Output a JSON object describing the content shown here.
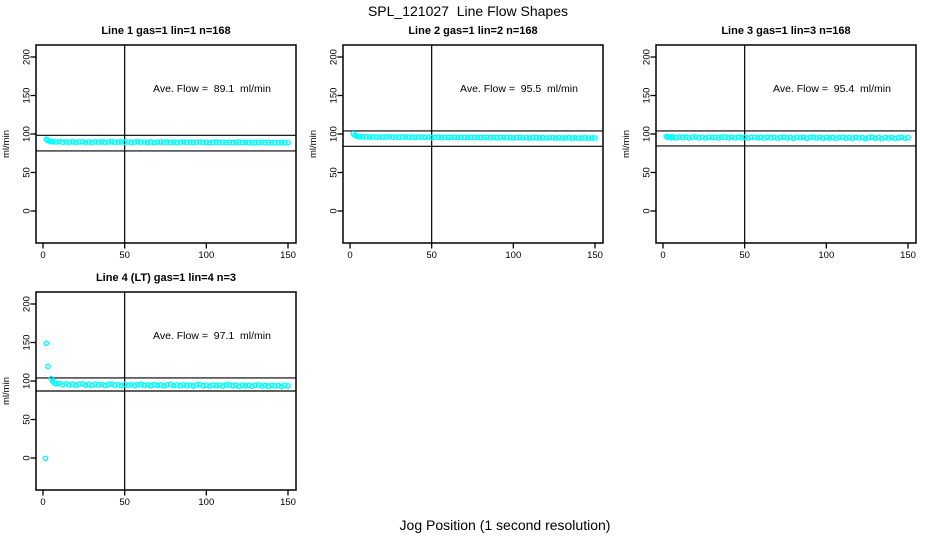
{
  "page": {
    "window_title": "SPL_121027  Line Flow Shapes"
  },
  "chart_data": {
    "type": "scatter",
    "title": "SPL_121027  Line Flow Shapes",
    "xlabel": "Jog Position (1 second resolution)",
    "ylabel": "ml/min",
    "marker_color": "#00FFFF",
    "line_color": "#000000",
    "x_ticks": [
      0,
      50,
      100,
      150
    ],
    "y_ticks": [
      0,
      50,
      100,
      150,
      200
    ],
    "xlim": [
      -5,
      155
    ],
    "ylim": [
      -42,
      216
    ],
    "grid": false,
    "legend": "none",
    "panels": [
      {
        "title": "Line 1 gas=1 lin=1 n=168",
        "annotation": "Ave. Flow =  89.1  ml/min",
        "ave_flow": 89.1,
        "ylabel": "ml/min",
        "ref_lines_h": [
          98.3,
          78.0
        ],
        "ref_line_v": 50,
        "points": [
          [
            2,
            93.2
          ],
          [
            3,
            91.5
          ],
          [
            4,
            90.6
          ],
          [
            5,
            90.2
          ],
          [
            6,
            90.0
          ],
          [
            8,
            89.6
          ],
          [
            10,
            90.1
          ],
          [
            12,
            89.3
          ],
          [
            14,
            89.8
          ],
          [
            16,
            89.4
          ],
          [
            18,
            90.0
          ],
          [
            20,
            89.2
          ],
          [
            22,
            89.7
          ],
          [
            24,
            89.9
          ],
          [
            26,
            89.3
          ],
          [
            28,
            89.6
          ],
          [
            30,
            89.1
          ],
          [
            32,
            89.8
          ],
          [
            34,
            89.4
          ],
          [
            36,
            89.7
          ],
          [
            38,
            89.2
          ],
          [
            40,
            89.6
          ],
          [
            42,
            89.9
          ],
          [
            44,
            89.3
          ],
          [
            46,
            89.5
          ],
          [
            48,
            89.8
          ],
          [
            50,
            89.2
          ],
          [
            52,
            89.6
          ],
          [
            54,
            89.0
          ],
          [
            56,
            89.5
          ],
          [
            58,
            89.8
          ],
          [
            60,
            89.3
          ],
          [
            62,
            89.6
          ],
          [
            64,
            89.1
          ],
          [
            66,
            89.5
          ],
          [
            68,
            88.9
          ],
          [
            70,
            89.4
          ],
          [
            72,
            89.7
          ],
          [
            74,
            89.2
          ],
          [
            76,
            89.5
          ],
          [
            78,
            89.0
          ],
          [
            80,
            89.4
          ],
          [
            82,
            88.9
          ],
          [
            84,
            89.3
          ],
          [
            86,
            89.6
          ],
          [
            88,
            89.1
          ],
          [
            90,
            89.4
          ],
          [
            92,
            88.9
          ],
          [
            94,
            89.3
          ],
          [
            96,
            89.6
          ],
          [
            98,
            89.0
          ],
          [
            100,
            89.3
          ],
          [
            102,
            88.8
          ],
          [
            104,
            89.2
          ],
          [
            106,
            89.5
          ],
          [
            108,
            89.0
          ],
          [
            110,
            89.3
          ],
          [
            112,
            88.8
          ],
          [
            114,
            89.2
          ],
          [
            116,
            88.7
          ],
          [
            118,
            89.1
          ],
          [
            120,
            89.4
          ],
          [
            122,
            88.9
          ],
          [
            124,
            89.2
          ],
          [
            126,
            88.7
          ],
          [
            128,
            89.1
          ],
          [
            130,
            88.6
          ],
          [
            132,
            89.0
          ],
          [
            134,
            89.3
          ],
          [
            136,
            88.8
          ],
          [
            138,
            89.1
          ],
          [
            140,
            88.6
          ],
          [
            142,
            89.0
          ],
          [
            144,
            88.5
          ],
          [
            146,
            88.9
          ],
          [
            148,
            88.4
          ],
          [
            150,
            88.8
          ]
        ]
      },
      {
        "title": "Line 2 gas=1 lin=2 n=168",
        "annotation": "Ave. Flow =  95.5  ml/min",
        "ave_flow": 95.5,
        "ylabel": "ml/min",
        "ref_lines_h": [
          104.0,
          84.0
        ],
        "ref_line_v": 50,
        "points": [
          [
            2,
            100.3
          ],
          [
            3,
            98.2
          ],
          [
            4,
            97.2
          ],
          [
            5,
            96.8
          ],
          [
            6,
            96.5
          ],
          [
            8,
            96.2
          ],
          [
            10,
            96.4
          ],
          [
            12,
            96.0
          ],
          [
            14,
            96.3
          ],
          [
            16,
            95.9
          ],
          [
            18,
            96.2
          ],
          [
            20,
            95.8
          ],
          [
            22,
            96.1
          ],
          [
            24,
            96.3
          ],
          [
            26,
            95.8
          ],
          [
            28,
            96.1
          ],
          [
            30,
            95.7
          ],
          [
            32,
            96.0
          ],
          [
            34,
            96.2
          ],
          [
            36,
            95.7
          ],
          [
            38,
            96.0
          ],
          [
            40,
            95.6
          ],
          [
            42,
            95.9
          ],
          [
            44,
            96.1
          ],
          [
            46,
            95.6
          ],
          [
            48,
            95.9
          ],
          [
            50,
            95.5
          ],
          [
            52,
            95.8
          ],
          [
            54,
            96.0
          ],
          [
            56,
            95.5
          ],
          [
            58,
            95.8
          ],
          [
            60,
            95.4
          ],
          [
            62,
            95.7
          ],
          [
            64,
            95.9
          ],
          [
            66,
            95.4
          ],
          [
            68,
            95.7
          ],
          [
            70,
            95.3
          ],
          [
            72,
            95.6
          ],
          [
            74,
            95.8
          ],
          [
            76,
            95.3
          ],
          [
            78,
            95.6
          ],
          [
            80,
            95.2
          ],
          [
            82,
            95.5
          ],
          [
            84,
            95.7
          ],
          [
            86,
            95.2
          ],
          [
            88,
            95.5
          ],
          [
            90,
            95.1
          ],
          [
            92,
            95.4
          ],
          [
            94,
            95.6
          ],
          [
            96,
            95.1
          ],
          [
            98,
            95.4
          ],
          [
            100,
            95.0
          ],
          [
            102,
            95.3
          ],
          [
            104,
            95.5
          ],
          [
            106,
            95.0
          ],
          [
            108,
            95.3
          ],
          [
            110,
            94.9
          ],
          [
            112,
            95.2
          ],
          [
            114,
            95.4
          ],
          [
            116,
            94.9
          ],
          [
            118,
            95.2
          ],
          [
            120,
            94.8
          ],
          [
            122,
            95.1
          ],
          [
            124,
            95.3
          ],
          [
            126,
            94.8
          ],
          [
            128,
            95.1
          ],
          [
            130,
            94.7
          ],
          [
            132,
            95.0
          ],
          [
            134,
            95.2
          ],
          [
            136,
            94.7
          ],
          [
            138,
            95.0
          ],
          [
            140,
            94.6
          ],
          [
            142,
            94.9
          ],
          [
            144,
            95.1
          ],
          [
            146,
            94.6
          ],
          [
            148,
            94.9
          ],
          [
            150,
            94.8
          ]
        ]
      },
      {
        "title": "Line 3 gas=1 lin=3 n=168",
        "annotation": "Ave. Flow =  95.4  ml/min",
        "ave_flow": 95.4,
        "ylabel": "ml/min",
        "ref_lines_h": [
          104.0,
          84.5
        ],
        "ref_line_v": 50,
        "points": [
          [
            2,
            96.6
          ],
          [
            3,
            95.9
          ],
          [
            4,
            96.3
          ],
          [
            5,
            95.2
          ],
          [
            6,
            96.0
          ],
          [
            8,
            95.1
          ],
          [
            10,
            96.2
          ],
          [
            12,
            95.4
          ],
          [
            14,
            96.0
          ],
          [
            16,
            94.9
          ],
          [
            18,
            95.8
          ],
          [
            20,
            96.3
          ],
          [
            22,
            95.1
          ],
          [
            24,
            95.9
          ],
          [
            26,
            94.8
          ],
          [
            28,
            96.1
          ],
          [
            30,
            95.3
          ],
          [
            32,
            95.9
          ],
          [
            34,
            94.9
          ],
          [
            36,
            95.7
          ],
          [
            38,
            96.2
          ],
          [
            40,
            95.0
          ],
          [
            42,
            95.8
          ],
          [
            44,
            94.8
          ],
          [
            46,
            96.0
          ],
          [
            48,
            95.2
          ],
          [
            50,
            95.8
          ],
          [
            52,
            94.8
          ],
          [
            54,
            95.6
          ],
          [
            56,
            96.1
          ],
          [
            58,
            95.0
          ],
          [
            60,
            95.7
          ],
          [
            62,
            94.7
          ],
          [
            64,
            95.9
          ],
          [
            66,
            95.1
          ],
          [
            68,
            95.7
          ],
          [
            70,
            94.7
          ],
          [
            72,
            95.5
          ],
          [
            74,
            96.0
          ],
          [
            76,
            94.9
          ],
          [
            78,
            95.6
          ],
          [
            80,
            94.6
          ],
          [
            82,
            95.8
          ],
          [
            84,
            95.0
          ],
          [
            86,
            95.6
          ],
          [
            88,
            94.6
          ],
          [
            90,
            95.4
          ],
          [
            92,
            95.9
          ],
          [
            94,
            94.8
          ],
          [
            96,
            95.5
          ],
          [
            98,
            94.5
          ],
          [
            100,
            95.7
          ],
          [
            102,
            94.9
          ],
          [
            104,
            95.5
          ],
          [
            106,
            94.5
          ],
          [
            108,
            95.3
          ],
          [
            110,
            95.8
          ],
          [
            112,
            94.7
          ],
          [
            114,
            95.4
          ],
          [
            116,
            94.4
          ],
          [
            118,
            95.6
          ],
          [
            120,
            94.8
          ],
          [
            122,
            95.4
          ],
          [
            124,
            94.4
          ],
          [
            126,
            95.2
          ],
          [
            128,
            95.7
          ],
          [
            130,
            94.6
          ],
          [
            132,
            95.3
          ],
          [
            134,
            94.3
          ],
          [
            136,
            95.5
          ],
          [
            138,
            94.7
          ],
          [
            140,
            95.3
          ],
          [
            142,
            94.3
          ],
          [
            144,
            95.1
          ],
          [
            146,
            95.6
          ],
          [
            148,
            94.5
          ],
          [
            150,
            95.2
          ]
        ]
      },
      {
        "title": "Line 4 (LT) gas=1 lin=4 n=3",
        "annotation": "Ave. Flow =  97.1  ml/min",
        "ave_flow": 97.1,
        "ylabel": "ml/min",
        "ref_lines_h": [
          104.0,
          87.0
        ],
        "ref_line_v": 50,
        "points": [
          [
            1.5,
            -0.5
          ],
          [
            2,
            149
          ],
          [
            3,
            119
          ],
          [
            5,
            103
          ],
          [
            6,
            99.5
          ],
          [
            7,
            97.3
          ],
          [
            8,
            96.4
          ],
          [
            10,
            96.8
          ],
          [
            12,
            95.2
          ],
          [
            14,
            96.3
          ],
          [
            16,
            94.8
          ],
          [
            18,
            96.0
          ],
          [
            20,
            94.6
          ],
          [
            22,
            95.8
          ],
          [
            24,
            96.4
          ],
          [
            26,
            94.6
          ],
          [
            28,
            95.7
          ],
          [
            30,
            94.3
          ],
          [
            32,
            95.9
          ],
          [
            34,
            94.7
          ],
          [
            36,
            95.5
          ],
          [
            38,
            94.2
          ],
          [
            40,
            95.6
          ],
          [
            42,
            96.1
          ],
          [
            44,
            94.4
          ],
          [
            46,
            95.3
          ],
          [
            48,
            94.1
          ],
          [
            50,
            95.5
          ],
          [
            52,
            94.5
          ],
          [
            54,
            95.2
          ],
          [
            56,
            94.0
          ],
          [
            58,
            95.3
          ],
          [
            60,
            95.8
          ],
          [
            62,
            94.2
          ],
          [
            64,
            95.0
          ],
          [
            66,
            93.9
          ],
          [
            68,
            95.2
          ],
          [
            70,
            94.3
          ],
          [
            72,
            95.0
          ],
          [
            74,
            93.8
          ],
          [
            76,
            95.1
          ],
          [
            78,
            95.6
          ],
          [
            80,
            94.0
          ],
          [
            82,
            94.8
          ],
          [
            84,
            93.7
          ],
          [
            86,
            95.0
          ],
          [
            88,
            94.1
          ],
          [
            90,
            94.8
          ],
          [
            92,
            93.6
          ],
          [
            94,
            94.9
          ],
          [
            96,
            95.4
          ],
          [
            98,
            93.8
          ],
          [
            100,
            94.6
          ],
          [
            102,
            93.5
          ],
          [
            104,
            94.8
          ],
          [
            106,
            93.9
          ],
          [
            108,
            94.6
          ],
          [
            110,
            93.4
          ],
          [
            112,
            94.7
          ],
          [
            114,
            95.2
          ],
          [
            116,
            93.6
          ],
          [
            118,
            94.4
          ],
          [
            120,
            93.3
          ],
          [
            122,
            94.6
          ],
          [
            124,
            93.7
          ],
          [
            126,
            94.4
          ],
          [
            128,
            93.2
          ],
          [
            130,
            94.5
          ],
          [
            132,
            95.0
          ],
          [
            134,
            93.4
          ],
          [
            136,
            94.2
          ],
          [
            138,
            93.1
          ],
          [
            140,
            94.4
          ],
          [
            142,
            93.5
          ],
          [
            144,
            94.2
          ],
          [
            146,
            93.0
          ],
          [
            148,
            94.3
          ],
          [
            150,
            93.6
          ]
        ]
      }
    ]
  }
}
